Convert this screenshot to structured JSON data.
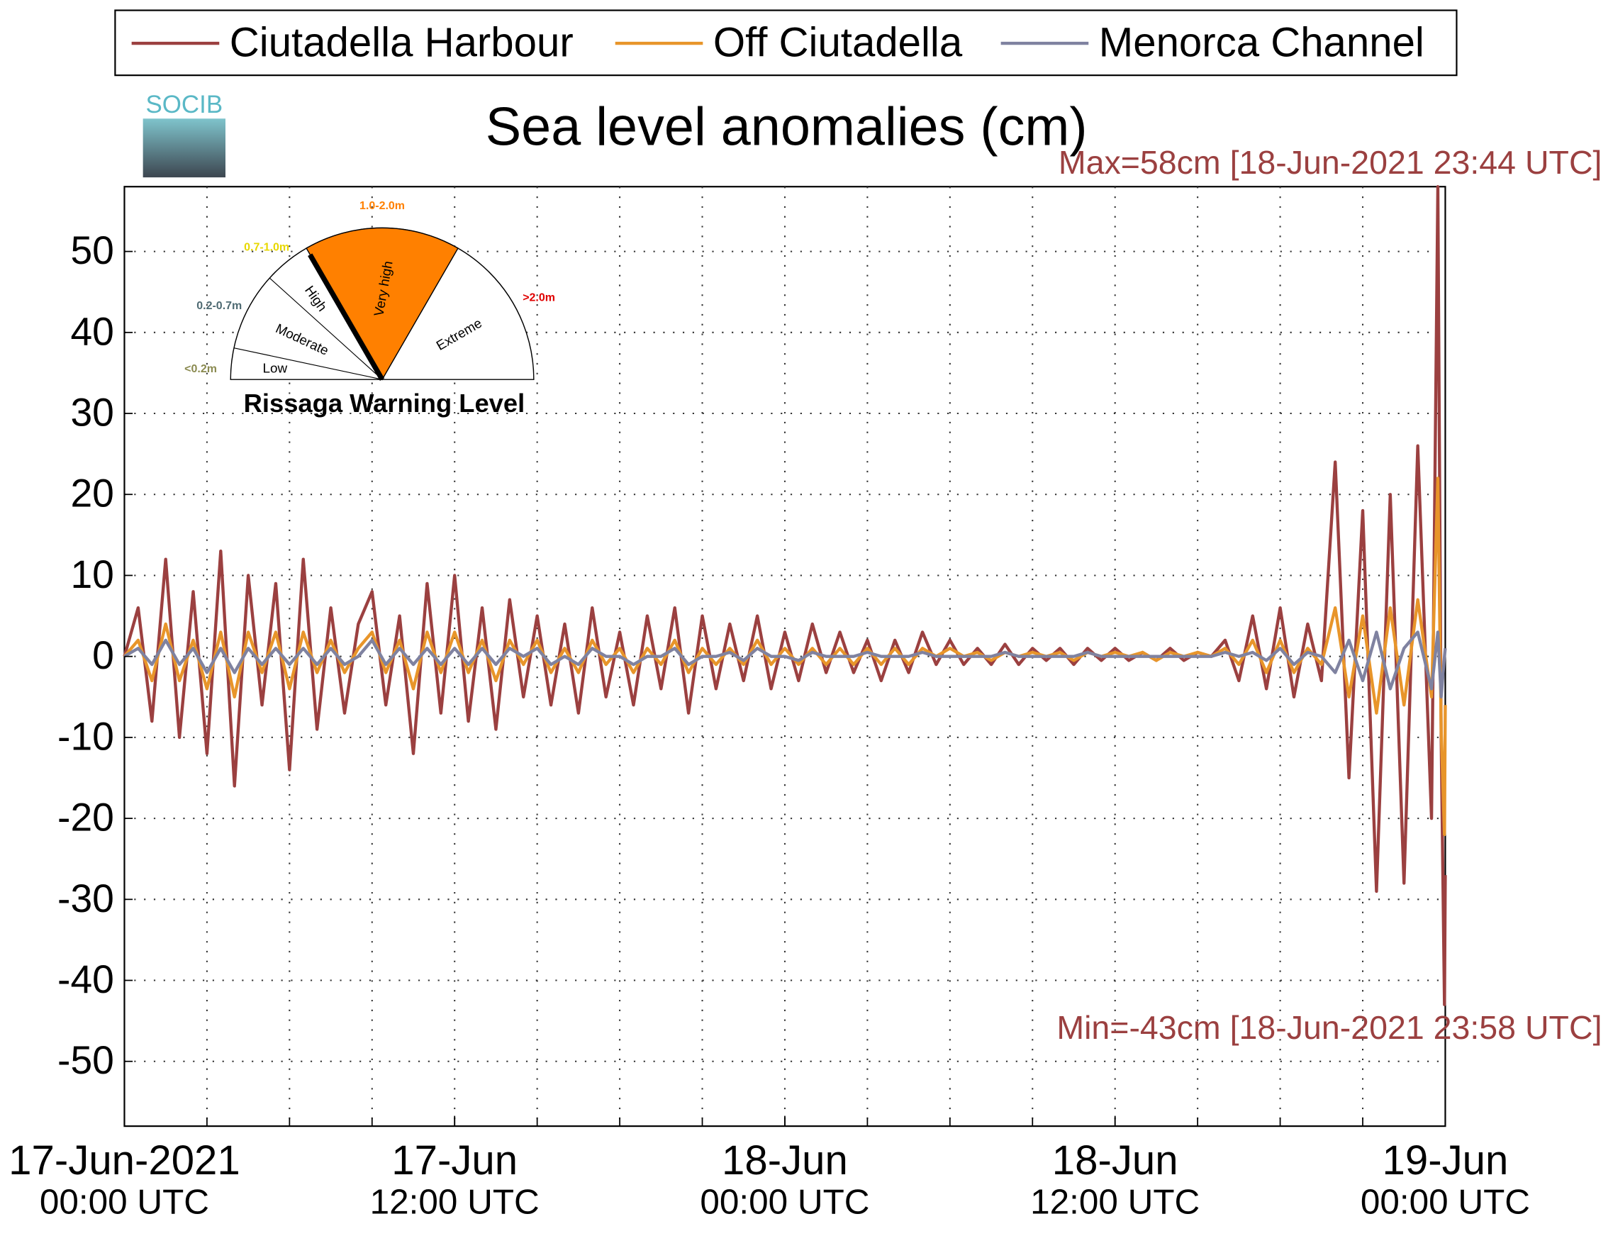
{
  "chart_data": {
    "type": "line",
    "title": "Sea level anomalies (cm)",
    "logo": "SOCIB",
    "annotations": [
      "Max=58cm [18-Jun-2021 23:44 UTC]",
      "Min=-43cm [18-Jun-2021 23:58 UTC]"
    ],
    "annotation_color": "#9b4040",
    "warning_inset": {
      "title": "Rissaga Warning Level",
      "levels": [
        {
          "name": "Low",
          "range": "<0.2m"
        },
        {
          "name": "Moderate",
          "range": "0.2-0.7m"
        },
        {
          "name": "High",
          "range": "0.7-1.0m"
        },
        {
          "name": "Very high",
          "range": "1.0-2.0m"
        },
        {
          "name": "Extreme",
          "range": ">2.0m"
        }
      ]
    },
    "x": [
      0,
      0.5,
      1,
      1.5,
      2,
      2.5,
      3,
      3.5,
      4,
      4.5,
      5,
      5.5,
      6,
      6.5,
      7,
      7.5,
      8,
      8.5,
      9,
      9.5,
      10,
      10.5,
      11,
      11.5,
      12,
      12.5,
      13,
      13.5,
      14,
      14.5,
      15,
      15.5,
      16,
      16.5,
      17,
      17.5,
      18,
      18.5,
      19,
      19.5,
      20,
      20.5,
      21,
      21.5,
      22,
      22.5,
      23,
      23.5,
      24,
      24.5,
      25,
      25.5,
      26,
      26.5,
      27,
      27.5,
      28,
      28.5,
      29,
      29.5,
      30,
      30.5,
      31,
      31.5,
      32,
      32.5,
      33,
      33.5,
      34,
      34.5,
      35,
      35.5,
      36,
      36.5,
      37,
      37.5,
      38,
      38.5,
      39,
      39.5,
      40,
      40.5,
      41,
      41.5,
      42,
      42.5,
      43,
      43.5,
      44,
      44.5,
      45,
      45.5,
      46,
      46.5,
      47,
      47.5,
      47.73,
      47.85,
      47.97,
      48
    ],
    "series": [
      {
        "name": "Ciutadella Harbour",
        "color": "#9b4040",
        "values": [
          0,
          6,
          -8,
          12,
          -10,
          8,
          -12,
          13,
          -16,
          10,
          -6,
          9,
          -14,
          12,
          -9,
          6,
          -7,
          4,
          8,
          -6,
          5,
          -12,
          9,
          -7,
          10,
          -8,
          6,
          -9,
          7,
          -5,
          5,
          -6,
          4,
          -7,
          6,
          -5,
          3,
          -6,
          5,
          -4,
          6,
          -7,
          5,
          -4,
          4,
          -3,
          5,
          -4,
          3,
          -3,
          4,
          -2,
          3,
          -2,
          2,
          -3,
          2,
          -2,
          3,
          -1,
          2,
          -1,
          1,
          -1,
          1.5,
          -1,
          1,
          -0.5,
          1,
          -1,
          1,
          -0.5,
          1,
          -0.5,
          0.5,
          -0.5,
          1,
          -0.5,
          0.5,
          0,
          2,
          -3,
          5,
          -4,
          6,
          -5,
          4,
          -3,
          24,
          -15,
          18,
          -29,
          20,
          -28,
          26,
          -20,
          58,
          -10,
          -43,
          -27
        ]
      },
      {
        "name": "Off Ciutadella",
        "color": "#e8952a",
        "values": [
          0,
          2,
          -3,
          4,
          -3,
          2,
          -4,
          3,
          -5,
          3,
          -2,
          3,
          -4,
          3,
          -2,
          2,
          -2,
          1,
          3,
          -2,
          2,
          -4,
          3,
          -2,
          3,
          -2,
          2,
          -3,
          2,
          -1,
          2,
          -2,
          1,
          -2,
          2,
          -1,
          1,
          -2,
          1,
          -1,
          2,
          -2,
          1,
          -1,
          1,
          -1,
          2,
          -1,
          1,
          -1,
          1,
          -1,
          1,
          -1,
          1,
          -1,
          1,
          -1,
          1,
          0,
          1,
          0,
          0.5,
          -0.5,
          0.5,
          0,
          0.5,
          0,
          0.5,
          -0.5,
          0.5,
          0,
          0.5,
          0,
          0.5,
          -0.5,
          0.5,
          0,
          0.5,
          0,
          1,
          -1,
          2,
          -2,
          2,
          -2,
          1,
          -1,
          6,
          -5,
          5,
          -7,
          6,
          -6,
          7,
          -5,
          22,
          -9,
          -22,
          -6
        ]
      },
      {
        "name": "Menorca Channel",
        "color": "#7f82a0",
        "values": [
          0,
          1,
          -1,
          2,
          -1,
          1,
          -2,
          1,
          -2,
          1,
          -1,
          1,
          -1,
          1,
          -1,
          1,
          -1,
          0,
          2,
          -1,
          1,
          -1,
          1,
          -1,
          1,
          -1,
          1,
          -1,
          1,
          0,
          1,
          -1,
          0,
          -1,
          1,
          0,
          0,
          -1,
          0,
          0,
          1,
          -1,
          0,
          0,
          0.5,
          -0.5,
          1,
          0,
          0,
          -0.5,
          0.5,
          0,
          0,
          0,
          0.5,
          0,
          0,
          0,
          0.5,
          0,
          0,
          0,
          0,
          0,
          0.5,
          0,
          0,
          0,
          0,
          0,
          0.5,
          0,
          0,
          0,
          0,
          0,
          0,
          0,
          0,
          0,
          0.5,
          0,
          0.5,
          -0.5,
          1,
          -1,
          0.5,
          0,
          -2,
          2,
          -3,
          3,
          -4,
          1,
          3,
          -4,
          3,
          -5,
          0,
          1
        ]
      }
    ],
    "xlim": [
      0,
      48
    ],
    "xticks": [
      {
        "value": 0,
        "label": [
          "17-Jun-2021",
          "00:00 UTC"
        ]
      },
      {
        "value": 12,
        "label": [
          "17-Jun",
          "12:00 UTC"
        ]
      },
      {
        "value": 24,
        "label": [
          "18-Jun",
          "00:00 UTC"
        ]
      },
      {
        "value": 36,
        "label": [
          "18-Jun",
          "12:00 UTC"
        ]
      },
      {
        "value": 48,
        "label": [
          "19-Jun",
          "00:00 UTC"
        ]
      }
    ],
    "xgrid": [
      3,
      6,
      9,
      12,
      15,
      18,
      21,
      24,
      27,
      30,
      33,
      36,
      39,
      42,
      45
    ],
    "ylim": [
      -58,
      58
    ],
    "yticks": [
      -50,
      -40,
      -30,
      -20,
      -10,
      0,
      10,
      20,
      30,
      40,
      50
    ],
    "grid": true,
    "legend": "top"
  }
}
